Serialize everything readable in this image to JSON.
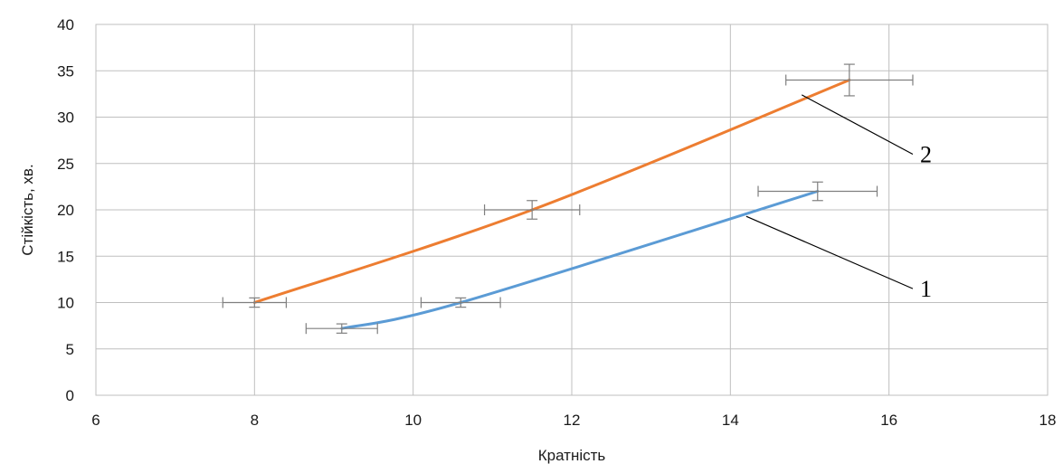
{
  "chart_data": {
    "type": "line",
    "xlabel": "Кратність",
    "ylabel": "Стійкість, хв.",
    "xlim": [
      6,
      18
    ],
    "ylim": [
      0,
      40
    ],
    "x_ticks": [
      "6",
      "8",
      "10",
      "12",
      "14",
      "16",
      "18"
    ],
    "y_ticks": [
      "0",
      "5",
      "10",
      "15",
      "20",
      "25",
      "30",
      "35",
      "40"
    ],
    "grid": true,
    "legend": "none",
    "series": [
      {
        "id": "1",
        "color": "#5b9bd5",
        "x": [
          9.1,
          10.6,
          15.1
        ],
        "y": [
          7.2,
          10.0,
          22.0
        ],
        "x_error": [
          0.45,
          0.5,
          0.75
        ],
        "y_error": [
          0.5,
          0.5,
          1.0
        ]
      },
      {
        "id": "2",
        "color": "#ed7d31",
        "x": [
          8.0,
          11.5,
          15.5
        ],
        "y": [
          10.0,
          20.0,
          34.0
        ],
        "x_error": [
          0.4,
          0.6,
          0.8
        ],
        "y_error": [
          0.5,
          1.0,
          1.7
        ]
      }
    ],
    "annotations": [
      {
        "label": "1",
        "series": "1",
        "anchor_x": 14.2,
        "anchor_y": 19.3,
        "text_x": 16.3,
        "text_y": 11.5
      },
      {
        "label": "2",
        "series": "2",
        "anchor_x": 14.9,
        "anchor_y": 32.4,
        "text_x": 16.3,
        "text_y": 26.0
      }
    ]
  }
}
